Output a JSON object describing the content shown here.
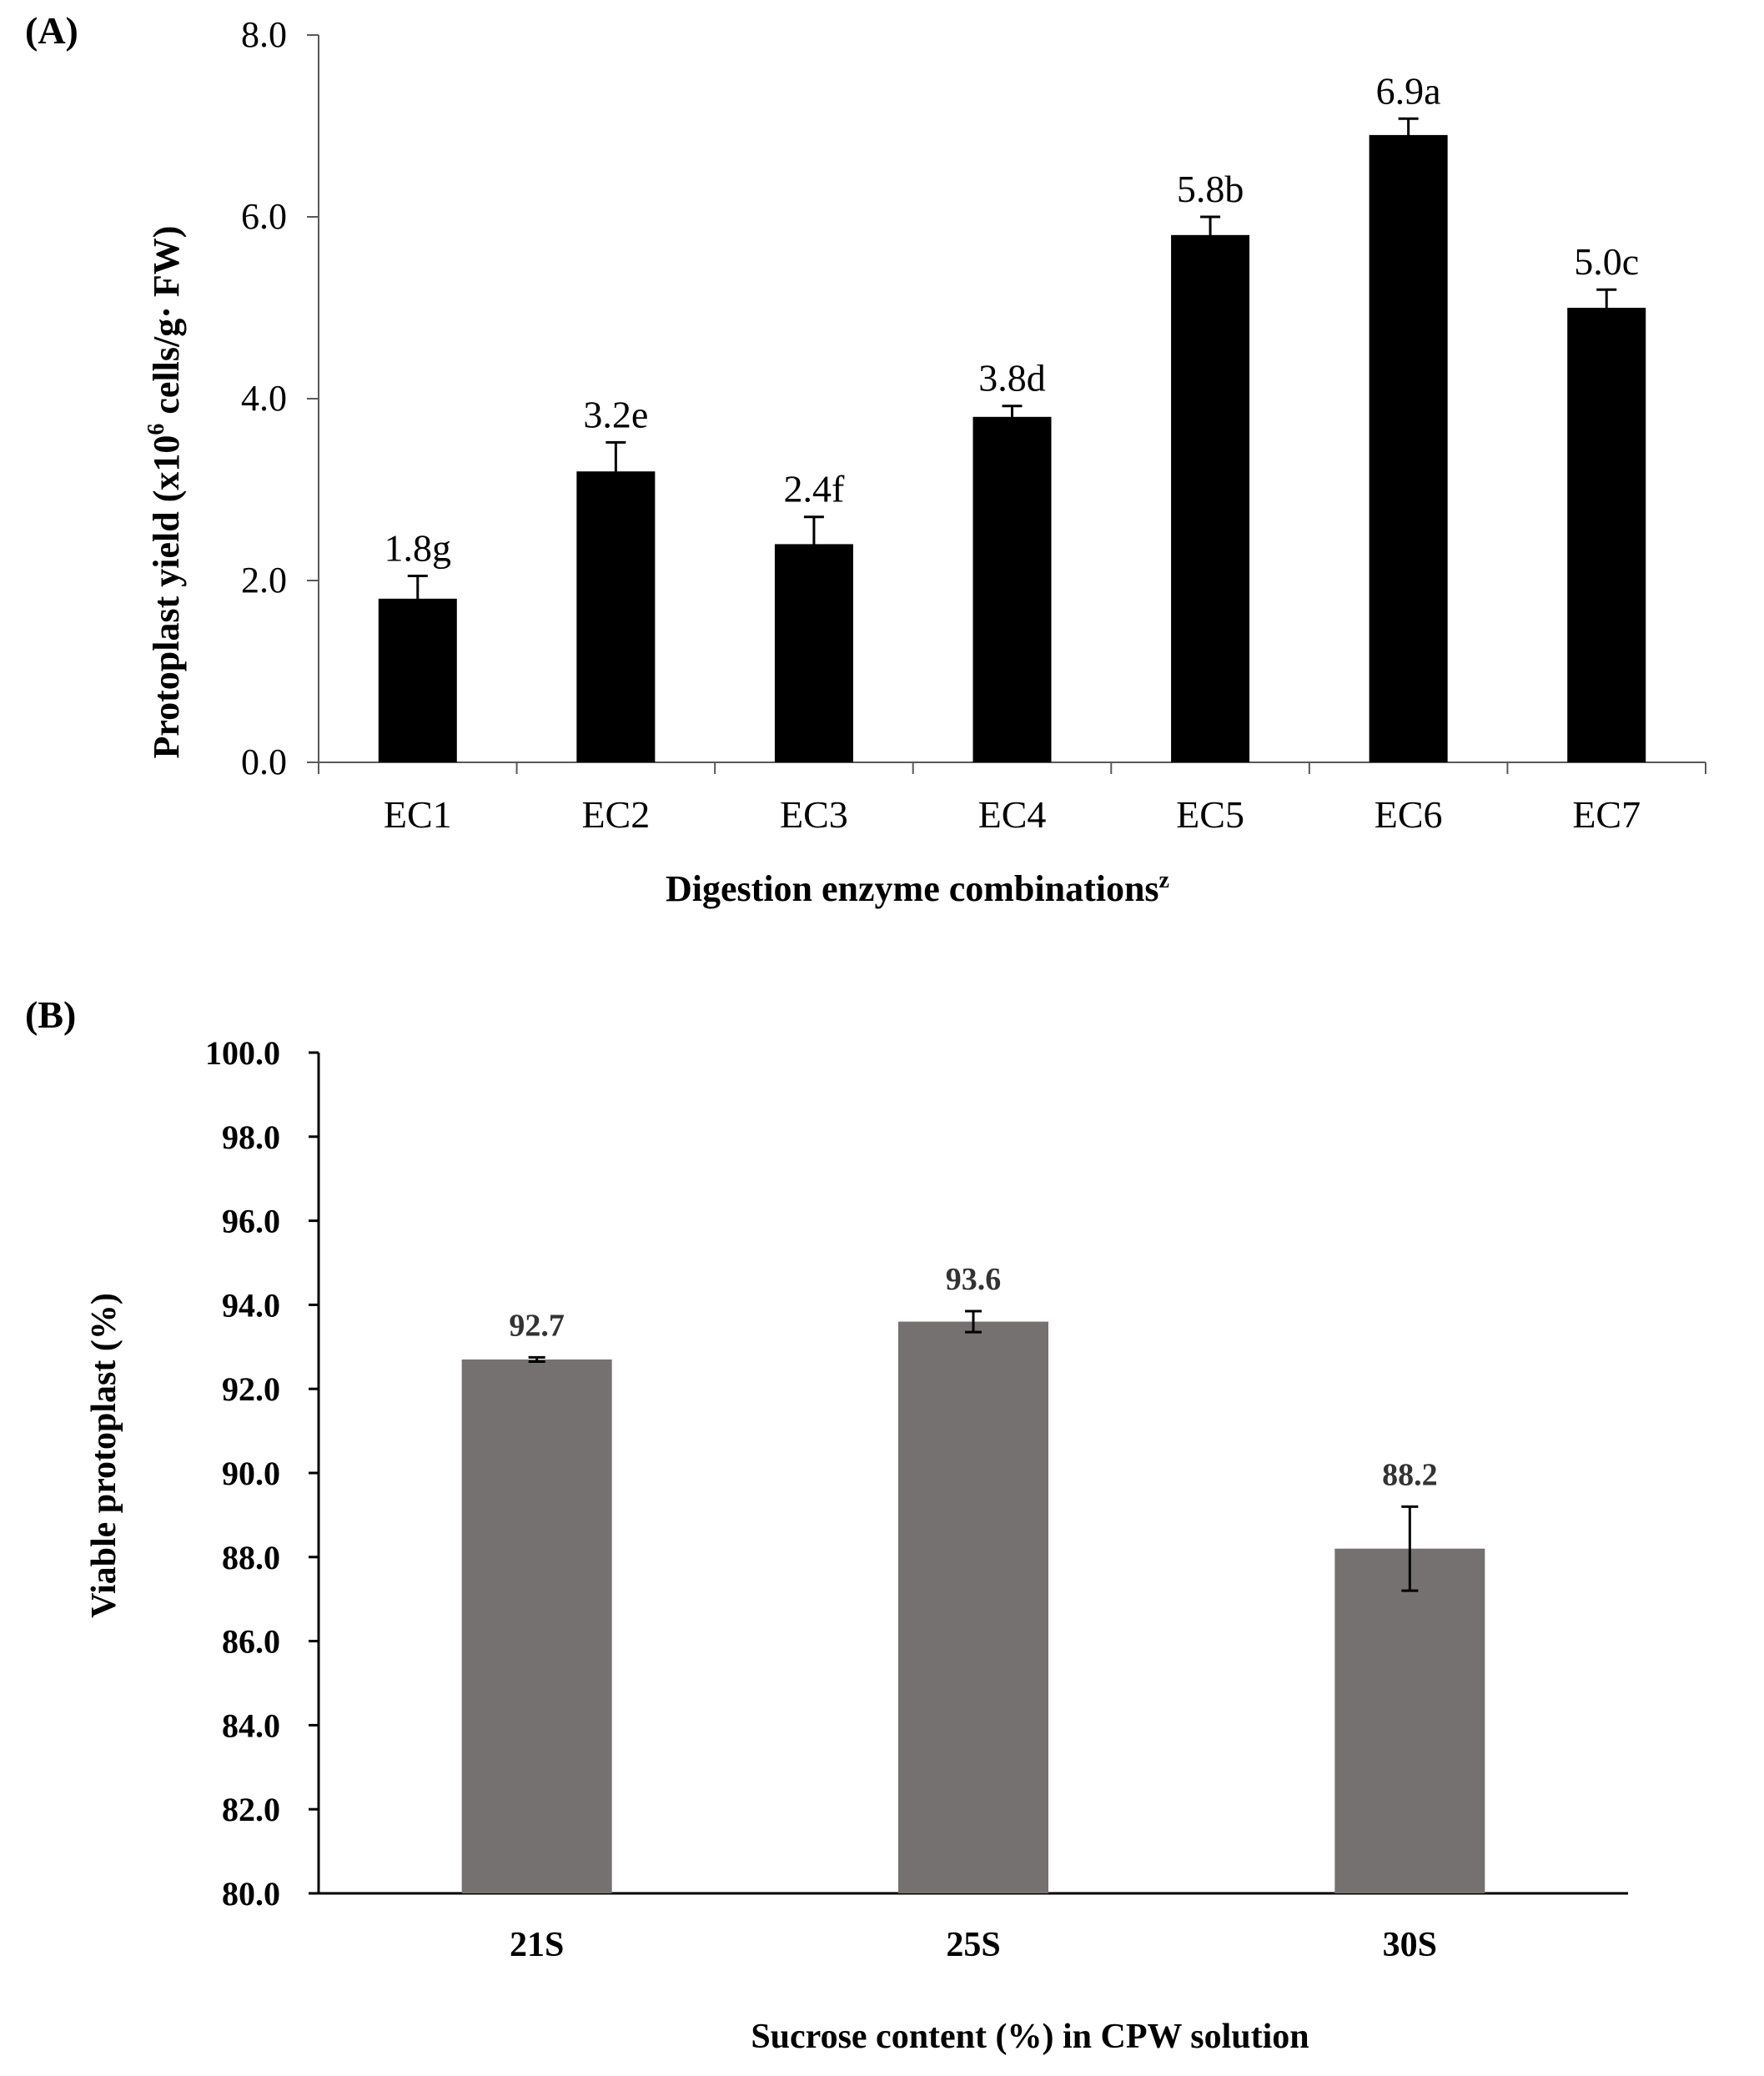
{
  "chart_data": [
    {
      "panel_label": "(A)",
      "type": "bar",
      "categories": [
        "EC1",
        "EC2",
        "EC3",
        "EC4",
        "EC5",
        "EC6",
        "EC7"
      ],
      "values": [
        1.8,
        3.2,
        2.4,
        3.8,
        5.8,
        6.9,
        5.0
      ],
      "errors": [
        0.25,
        0.32,
        0.3,
        0.12,
        0.2,
        0.18,
        0.2
      ],
      "data_labels": [
        "1.8g",
        "3.2e",
        "2.4f",
        "3.8d",
        "5.8b",
        "6.9a",
        "5.0c"
      ],
      "yticks": [
        "0.0",
        "2.0",
        "4.0",
        "6.0",
        "8.0"
      ],
      "ylim": [
        0,
        8
      ],
      "ylabel_prefix": "Protoplast yield (x10",
      "ylabel_sup": "6",
      "ylabel_suffix": " cells/g· FW)",
      "xlabel": "Digestion enzyme combinations",
      "xlabel_sup": "z",
      "bar_color": "#000000"
    },
    {
      "panel_label": "(B)",
      "type": "bar",
      "categories": [
        "21S",
        "25S",
        "30S"
      ],
      "values": [
        92.7,
        93.6,
        88.2
      ],
      "errors": [
        0.05,
        0.25,
        1.0
      ],
      "data_labels": [
        "92.7",
        "93.6",
        "88.2"
      ],
      "yticks": [
        "80.0",
        "82.0",
        "84.0",
        "86.0",
        "88.0",
        "90.0",
        "92.0",
        "94.0",
        "96.0",
        "98.0",
        "100.0"
      ],
      "ylim": [
        80,
        100
      ],
      "ylabel": "Viable protoplast (%)",
      "xlabel": "Sucrose content (%) in CPW solution",
      "bar_color": "#767171"
    }
  ]
}
